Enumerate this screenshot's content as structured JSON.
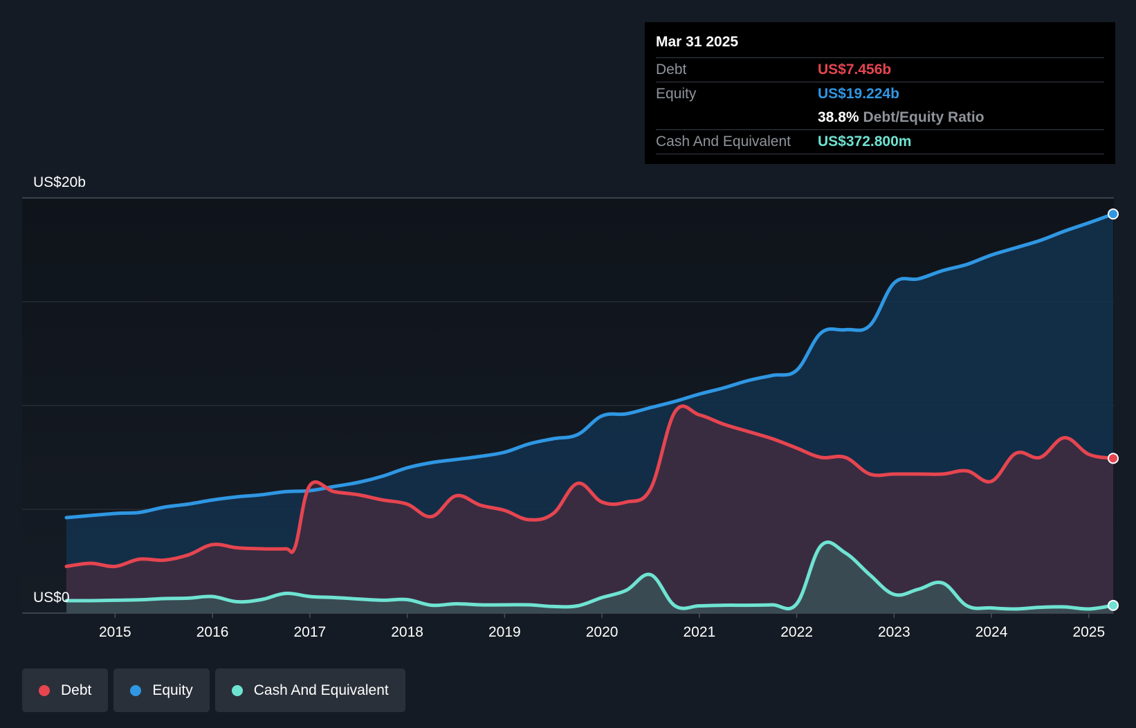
{
  "tooltip": {
    "date": "Mar 31 2025",
    "rows": [
      {
        "label": "Debt",
        "value": "US$7.456b"
      },
      {
        "label": "Equity",
        "value": "US$19.224b"
      },
      {
        "ratio": "38.8%",
        "ratio_label": "Debt/Equity Ratio"
      },
      {
        "label": "Cash And Equivalent",
        "value": "US$372.800m"
      }
    ]
  },
  "legend": {
    "items": [
      {
        "label": "Debt",
        "color": "#e64550"
      },
      {
        "label": "Equity",
        "color": "#2f97e3"
      },
      {
        "label": "Cash And Equivalent",
        "color": "#6fe3d2"
      }
    ]
  },
  "chart_data": {
    "type": "area",
    "ylim": [
      0,
      20
    ],
    "y_unit": "US$ billions",
    "y_tick_labels": [
      {
        "value": 20,
        "label": "US$20b"
      },
      {
        "value": 0,
        "label": "US$0"
      }
    ],
    "xlim": [
      2014.5,
      2025.25
    ],
    "x_ticks": [
      2015,
      2016,
      2017,
      2018,
      2019,
      2020,
      2021,
      2022,
      2023,
      2024,
      2025
    ],
    "grid": true,
    "legend_position": "bottom-left",
    "series": [
      {
        "name": "Equity",
        "color": "#2f97e3",
        "points": [
          [
            2014.5,
            4.6
          ],
          [
            2015.0,
            4.8
          ],
          [
            2015.25,
            4.85
          ],
          [
            2015.5,
            5.1
          ],
          [
            2015.75,
            5.25
          ],
          [
            2016.0,
            5.45
          ],
          [
            2016.25,
            5.6
          ],
          [
            2016.5,
            5.7
          ],
          [
            2016.75,
            5.85
          ],
          [
            2017.0,
            5.9
          ],
          [
            2017.25,
            6.1
          ],
          [
            2017.5,
            6.3
          ],
          [
            2017.75,
            6.6
          ],
          [
            2018.0,
            7.0
          ],
          [
            2018.25,
            7.25
          ],
          [
            2018.5,
            7.4
          ],
          [
            2018.75,
            7.55
          ],
          [
            2019.0,
            7.75
          ],
          [
            2019.25,
            8.15
          ],
          [
            2019.5,
            8.4
          ],
          [
            2019.75,
            8.6
          ],
          [
            2020.0,
            9.5
          ],
          [
            2020.25,
            9.6
          ],
          [
            2020.5,
            9.9
          ],
          [
            2020.75,
            10.2
          ],
          [
            2021.0,
            10.55
          ],
          [
            2021.25,
            10.85
          ],
          [
            2021.5,
            11.2
          ],
          [
            2021.75,
            11.45
          ],
          [
            2022.0,
            11.7
          ],
          [
            2022.25,
            13.5
          ],
          [
            2022.5,
            13.65
          ],
          [
            2022.75,
            13.85
          ],
          [
            2023.0,
            15.9
          ],
          [
            2023.25,
            16.1
          ],
          [
            2023.5,
            16.5
          ],
          [
            2023.75,
            16.8
          ],
          [
            2024.0,
            17.25
          ],
          [
            2024.25,
            17.6
          ],
          [
            2024.5,
            17.95
          ],
          [
            2024.75,
            18.4
          ],
          [
            2025.0,
            18.8
          ],
          [
            2025.25,
            19.224
          ]
        ]
      },
      {
        "name": "Debt",
        "color": "#e64550",
        "points": [
          [
            2014.5,
            2.25
          ],
          [
            2014.75,
            2.4
          ],
          [
            2015.0,
            2.25
          ],
          [
            2015.25,
            2.6
          ],
          [
            2015.5,
            2.55
          ],
          [
            2015.75,
            2.8
          ],
          [
            2016.0,
            3.3
          ],
          [
            2016.25,
            3.15
          ],
          [
            2016.5,
            3.1
          ],
          [
            2016.75,
            3.1
          ],
          [
            2016.85,
            3.2
          ],
          [
            2017.0,
            6.15
          ],
          [
            2017.25,
            5.85
          ],
          [
            2017.5,
            5.7
          ],
          [
            2017.75,
            5.45
          ],
          [
            2018.0,
            5.25
          ],
          [
            2018.25,
            4.65
          ],
          [
            2018.5,
            5.65
          ],
          [
            2018.75,
            5.2
          ],
          [
            2019.0,
            4.95
          ],
          [
            2019.25,
            4.5
          ],
          [
            2019.5,
            4.8
          ],
          [
            2019.75,
            6.25
          ],
          [
            2020.0,
            5.35
          ],
          [
            2020.25,
            5.35
          ],
          [
            2020.5,
            6.0
          ],
          [
            2020.75,
            9.7
          ],
          [
            2021.0,
            9.55
          ],
          [
            2021.25,
            9.1
          ],
          [
            2021.5,
            8.75
          ],
          [
            2021.75,
            8.4
          ],
          [
            2022.0,
            7.95
          ],
          [
            2022.25,
            7.5
          ],
          [
            2022.5,
            7.5
          ],
          [
            2022.75,
            6.7
          ],
          [
            2023.0,
            6.7
          ],
          [
            2023.25,
            6.7
          ],
          [
            2023.5,
            6.7
          ],
          [
            2023.75,
            6.85
          ],
          [
            2024.0,
            6.35
          ],
          [
            2024.25,
            7.7
          ],
          [
            2024.5,
            7.5
          ],
          [
            2024.75,
            8.45
          ],
          [
            2025.0,
            7.65
          ],
          [
            2025.25,
            7.456
          ]
        ]
      },
      {
        "name": "Cash And Equivalent",
        "color": "#6fe3d2",
        "points": [
          [
            2014.5,
            0.6
          ],
          [
            2014.75,
            0.6
          ],
          [
            2015.0,
            0.62
          ],
          [
            2015.25,
            0.64
          ],
          [
            2015.5,
            0.7
          ],
          [
            2015.75,
            0.72
          ],
          [
            2016.0,
            0.8
          ],
          [
            2016.25,
            0.55
          ],
          [
            2016.5,
            0.65
          ],
          [
            2016.75,
            0.95
          ],
          [
            2017.0,
            0.8
          ],
          [
            2017.25,
            0.75
          ],
          [
            2017.5,
            0.68
          ],
          [
            2017.75,
            0.62
          ],
          [
            2018.0,
            0.65
          ],
          [
            2018.25,
            0.38
          ],
          [
            2018.5,
            0.45
          ],
          [
            2018.75,
            0.4
          ],
          [
            2019.0,
            0.4
          ],
          [
            2019.25,
            0.4
          ],
          [
            2019.5,
            0.32
          ],
          [
            2019.75,
            0.35
          ],
          [
            2020.0,
            0.75
          ],
          [
            2020.25,
            1.1
          ],
          [
            2020.5,
            1.85
          ],
          [
            2020.75,
            0.35
          ],
          [
            2021.0,
            0.35
          ],
          [
            2021.25,
            0.38
          ],
          [
            2021.5,
            0.38
          ],
          [
            2021.75,
            0.4
          ],
          [
            2022.0,
            0.45
          ],
          [
            2022.25,
            3.25
          ],
          [
            2022.5,
            2.9
          ],
          [
            2022.75,
            1.85
          ],
          [
            2023.0,
            0.9
          ],
          [
            2023.25,
            1.15
          ],
          [
            2023.5,
            1.45
          ],
          [
            2023.75,
            0.35
          ],
          [
            2024.0,
            0.25
          ],
          [
            2024.25,
            0.2
          ],
          [
            2024.5,
            0.28
          ],
          [
            2024.75,
            0.3
          ],
          [
            2025.0,
            0.2
          ],
          [
            2025.25,
            0.3728
          ]
        ]
      }
    ]
  }
}
